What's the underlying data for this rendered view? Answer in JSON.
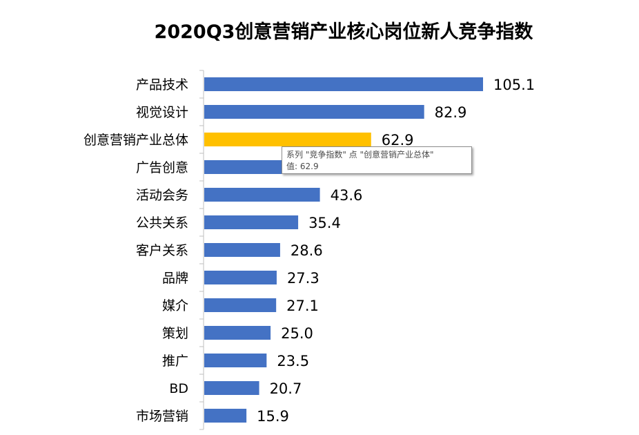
{
  "chart_data": {
    "type": "bar",
    "orientation": "horizontal",
    "title": "2020Q3创意营销产业核心岗位新人竞争指数",
    "categories": [
      "产品技术",
      "视觉设计",
      "创意营销产业总体",
      "广告创意",
      "活动会务",
      "公共关系",
      "客户关系",
      "品牌",
      "媒介",
      "策划",
      "推广",
      "BD",
      "市场营销"
    ],
    "series": [
      {
        "name": "竞争指数",
        "values": [
          105.1,
          82.9,
          62.9,
          null,
          43.6,
          35.4,
          28.6,
          27.3,
          27.1,
          25.0,
          23.5,
          20.7,
          15.9
        ]
      }
    ],
    "value_labels": [
      "105.1",
      "82.9",
      "62.9",
      "",
      "43.6",
      "35.4",
      "28.6",
      "27.3",
      "27.1",
      "25.0",
      "23.5",
      "20.7",
      "15.9"
    ],
    "colors": {
      "bar": "#4472C4",
      "highlight": "#FFC000"
    },
    "highlight_index": 2,
    "xlim": [
      0,
      110
    ],
    "grid": false,
    "legend": "none"
  },
  "tooltip": {
    "line1": "系列 \"竞争指数\" 点 \"创意营销产业总体\"",
    "line2": "值: 62.9"
  }
}
